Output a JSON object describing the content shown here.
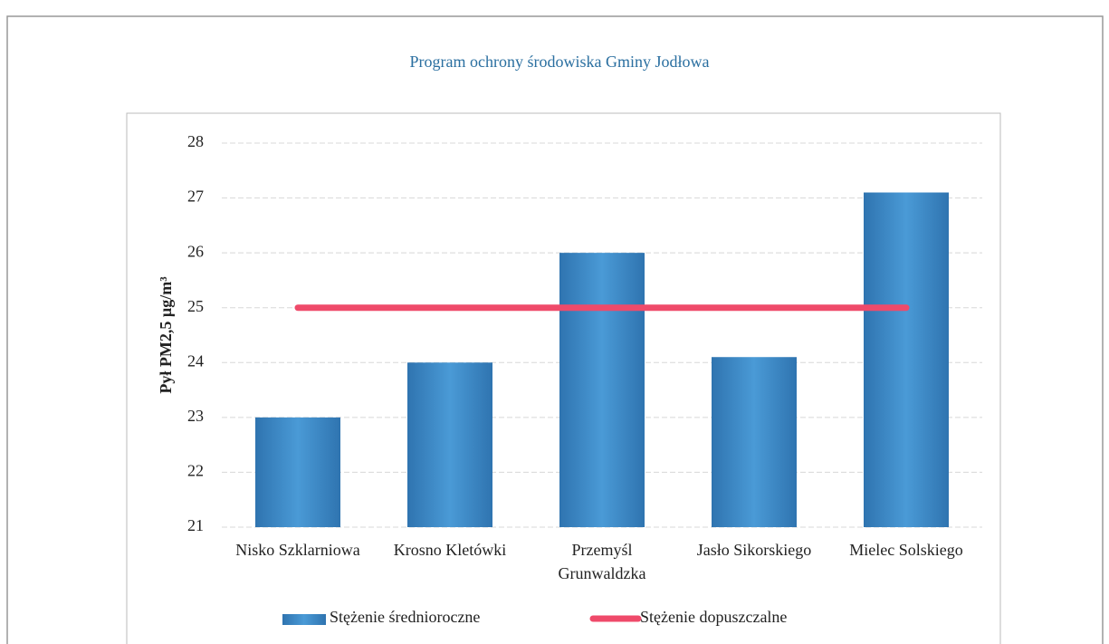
{
  "chart_data": {
    "type": "bar",
    "title": "Program ochrony środowiska Gminy Jodłowa",
    "y_label": "Pył PM2,5 µg/m³",
    "categories": [
      "Nisko Szklarniowa",
      "Krosno Kletówki",
      "Przemyśl Grunwaldzka",
      "Jasło Sikorskiego",
      "Mielec Solskiego"
    ],
    "series": [
      {
        "name": "Stężenie średnioroczne",
        "type": "bar",
        "color": "#3a86c4",
        "values": [
          23,
          24,
          26,
          24.1,
          27.1
        ]
      },
      {
        "name": "Stężenie dopuszczalne",
        "type": "line",
        "color": "#ef4a6a",
        "values": [
          25,
          25,
          25,
          25,
          25
        ]
      }
    ],
    "ylim": [
      21,
      28
    ],
    "yticks": [
      21,
      22,
      23,
      24,
      25,
      26,
      27,
      28
    ],
    "grid": true
  }
}
